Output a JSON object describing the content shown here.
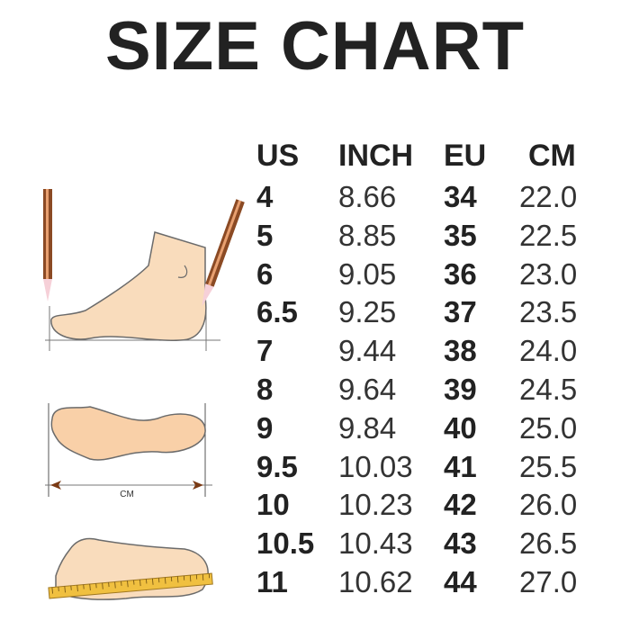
{
  "title": "SIZE CHART",
  "headers": {
    "us": "US",
    "inch": "INCH",
    "eu": "EU",
    "cm": "CM"
  },
  "rows": {
    "us": [
      "4",
      "5",
      "6",
      "6.5",
      "7",
      "8",
      "9",
      "9.5",
      "10",
      "10.5",
      "11"
    ],
    "inch": [
      "8.66",
      "8.85",
      "9.05",
      "9.25",
      "9.44",
      "9.64",
      "9.84",
      "10.03",
      "10.23",
      "10.43",
      "10.62"
    ],
    "eu": [
      "34",
      "35",
      "36",
      "37",
      "38",
      "39",
      "40",
      "41",
      "42",
      "43",
      "44"
    ],
    "cm": [
      "22.0",
      "22.5",
      "23.0",
      "23.5",
      "24.0",
      "24.5",
      "25.0",
      "25.5",
      "26.0",
      "26.5",
      "27.0"
    ]
  },
  "illustration": {
    "measure_label": "CM"
  },
  "colors": {
    "text": "#222222",
    "skin": "#f9dcbc",
    "outline": "#6b6b6b",
    "pencil": "#8b4a24",
    "ruler": "#f0c040"
  }
}
